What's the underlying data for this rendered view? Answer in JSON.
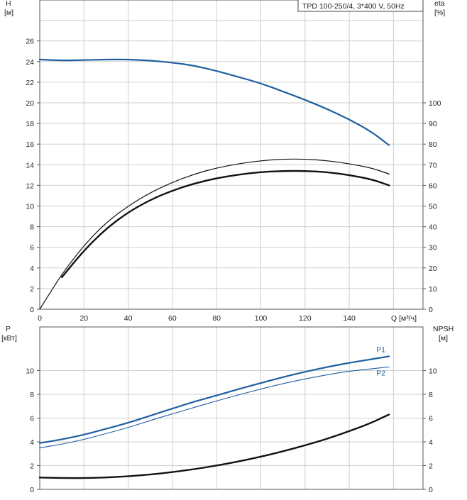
{
  "title": "TPD 100-250/4, 3*400 V, 50Hz",
  "colors": {
    "blue": "#1f5fa0",
    "black": "#111111",
    "grid": "#cfcfcf"
  },
  "chart_data": [
    {
      "type": "line",
      "name": "top-panel",
      "y_left_label_line1": "H",
      "y_left_label_line2": "[м]",
      "y_right_label_line1": "eta",
      "y_right_label_line2": "[%]",
      "x_label": "Q [м³/ч]",
      "xlim": [
        0,
        175
      ],
      "x_ticks": [
        0,
        20,
        40,
        60,
        80,
        100,
        120,
        140
      ],
      "ylim_left": [
        0,
        28
      ],
      "y_left_ticks": [
        0,
        2,
        4,
        6,
        8,
        10,
        12,
        14,
        16,
        18,
        20,
        22,
        24,
        26
      ],
      "ylim_right": [
        0,
        140
      ],
      "y_right_ticks": [
        0,
        10,
        20,
        30,
        40,
        50,
        60,
        70,
        80,
        90,
        100
      ],
      "series": [
        {
          "axis": "left",
          "color": "blue",
          "width": 2.2,
          "x": [
            0,
            10,
            20,
            30,
            40,
            50,
            60,
            70,
            80,
            90,
            100,
            110,
            120,
            130,
            140,
            150,
            158
          ],
          "y": [
            24.2,
            24.1,
            24.15,
            24.2,
            24.2,
            24.1,
            23.9,
            23.6,
            23.1,
            22.5,
            21.9,
            21.1,
            20.3,
            19.4,
            18.4,
            17.2,
            15.9
          ]
        },
        {
          "axis": "left",
          "color": "black",
          "width": 1.2,
          "x": [
            0,
            5,
            10,
            20,
            30,
            40,
            50,
            60,
            70,
            80,
            90,
            100,
            110,
            120,
            130,
            140,
            150,
            158
          ],
          "y": [
            0.0,
            1.7,
            3.4,
            6.2,
            8.4,
            10.0,
            11.3,
            12.3,
            13.1,
            13.7,
            14.1,
            14.4,
            14.55,
            14.55,
            14.4,
            14.1,
            13.7,
            13.1
          ]
        },
        {
          "axis": "left",
          "color": "black",
          "width": 2.4,
          "x": [
            10,
            20,
            30,
            40,
            50,
            60,
            70,
            80,
            90,
            100,
            110,
            120,
            130,
            140,
            150,
            158
          ],
          "y": [
            3.1,
            5.7,
            7.8,
            9.4,
            10.6,
            11.5,
            12.2,
            12.7,
            13.05,
            13.3,
            13.4,
            13.4,
            13.3,
            13.0,
            12.6,
            12.0
          ]
        }
      ]
    },
    {
      "type": "line",
      "name": "bottom-panel",
      "y_left_label_line1": "P",
      "y_left_label_line2": "[кВт]",
      "y_right_label_line1": "NPSH",
      "y_right_label_line2": "[м]",
      "xlim": [
        0,
        175
      ],
      "ylim_left": [
        0,
        12
      ],
      "y_left_ticks": [
        0,
        2,
        4,
        6,
        8,
        10
      ],
      "ylim_right": [
        0,
        12
      ],
      "y_right_ticks": [
        0,
        2,
        4,
        6,
        8,
        10
      ],
      "series": [
        {
          "name": "P1",
          "axis": "left",
          "color": "blue",
          "width": 2.2,
          "x": [
            0,
            10,
            20,
            30,
            40,
            50,
            60,
            70,
            80,
            90,
            100,
            110,
            120,
            130,
            140,
            150,
            158
          ],
          "y": [
            3.9,
            4.2,
            4.6,
            5.1,
            5.6,
            6.2,
            6.8,
            7.4,
            7.9,
            8.45,
            8.95,
            9.45,
            9.9,
            10.3,
            10.65,
            10.95,
            11.2
          ]
        },
        {
          "name": "P2",
          "axis": "left",
          "color": "blue",
          "width": 1.1,
          "x": [
            0,
            10,
            20,
            30,
            40,
            50,
            60,
            70,
            80,
            90,
            100,
            110,
            120,
            130,
            140,
            150,
            158
          ],
          "y": [
            3.5,
            3.8,
            4.2,
            4.7,
            5.2,
            5.8,
            6.35,
            6.9,
            7.45,
            7.95,
            8.45,
            8.9,
            9.3,
            9.65,
            9.95,
            10.15,
            10.3
          ]
        },
        {
          "axis": "right",
          "color": "black",
          "width": 2.4,
          "x": [
            0,
            10,
            20,
            30,
            40,
            50,
            60,
            70,
            80,
            90,
            100,
            110,
            120,
            130,
            140,
            150,
            158
          ],
          "y": [
            1.0,
            0.95,
            0.95,
            1.0,
            1.1,
            1.25,
            1.45,
            1.7,
            2.0,
            2.35,
            2.75,
            3.2,
            3.7,
            4.25,
            4.9,
            5.6,
            6.3
          ]
        }
      ]
    }
  ]
}
